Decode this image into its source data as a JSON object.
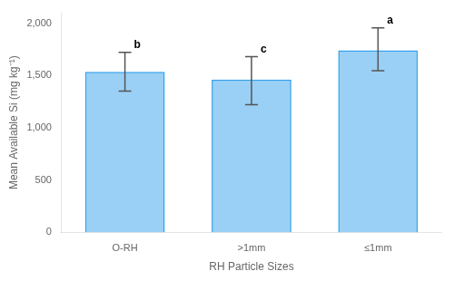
{
  "chart_data": {
    "type": "bar",
    "categories": [
      "O-RH",
      ">1mm",
      "≤1mm"
    ],
    "values": [
      1535,
      1460,
      1740
    ],
    "error_upper": [
      185,
      220,
      215
    ],
    "error_lower": [
      185,
      240,
      195
    ],
    "annotations": [
      "b",
      "c",
      "a"
    ],
    "xlabel": "RH Particle Sizes",
    "ylabel": "Mean Available Si (mg kg⁻¹)",
    "ylim": [
      0,
      2100
    ],
    "yticks": [
      0,
      500,
      {
        "value": 1000,
        "label": "1,000"
      },
      {
        "value": 1500,
        "label": "1,500"
      },
      {
        "value": 2000,
        "label": "2,000"
      }
    ],
    "grid": false
  }
}
